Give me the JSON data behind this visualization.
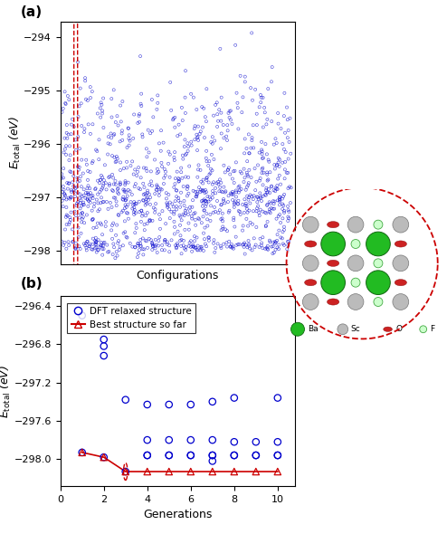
{
  "panel_a_label": "(a)",
  "panel_b_label": "(b)",
  "panel_a_xlabel": "Configurations",
  "panel_b_xlabel": "Generations",
  "ylabel": "$E_{\\mathrm{total}}$ (eV)",
  "panel_a_ylim": [
    -298.25,
    -293.7
  ],
  "panel_a_yticks": [
    -298.0,
    -297.0,
    -296.0,
    -295.0,
    -294.0
  ],
  "panel_b_ylim": [
    -298.28,
    -296.3
  ],
  "panel_b_yticks": [
    -298.0,
    -297.6,
    -297.2,
    -296.8,
    -296.4
  ],
  "panel_b_xlim": [
    0,
    10.8
  ],
  "panel_b_xticks": [
    0,
    2,
    4,
    6,
    8,
    10
  ],
  "scatter_color": "#0000CD",
  "best_color": "#CC0000",
  "legend_dft": "DFT relaxed structure",
  "legend_best": "Best structure so far",
  "seed": 42,
  "best_so_far_b": [
    -297.93,
    -297.98,
    -298.13,
    -298.13,
    -298.13,
    -298.13,
    -298.13,
    -298.13,
    -298.13,
    -298.13
  ],
  "b_blue_x": [
    1,
    2,
    2,
    2,
    3,
    4,
    4,
    4,
    5,
    5,
    5,
    6,
    6,
    6,
    7,
    7,
    7,
    8,
    8,
    8,
    9,
    9,
    10,
    10,
    10
  ],
  "b_blue_y": [
    -296.5,
    -296.75,
    -296.82,
    -296.92,
    -297.38,
    -297.43,
    -297.8,
    -297.96,
    -297.43,
    -297.8,
    -297.96,
    -297.43,
    -297.8,
    -297.96,
    -297.4,
    -297.8,
    -297.96,
    -297.36,
    -297.82,
    -297.96,
    -297.82,
    -297.96,
    -297.36,
    -297.82,
    -297.96
  ],
  "b_extra_x": [
    1,
    2,
    3,
    4,
    5,
    6,
    7,
    7,
    8,
    9,
    10
  ],
  "b_extra_y": [
    -297.93,
    -297.98,
    -298.13,
    -297.96,
    -297.96,
    -297.96,
    -297.96,
    -298.02,
    -297.96,
    -297.96,
    -297.96
  ]
}
